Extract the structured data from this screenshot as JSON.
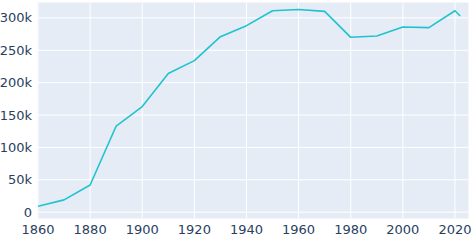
{
  "chart_data": {
    "type": "line",
    "x": [
      1860,
      1870,
      1880,
      1890,
      1900,
      1910,
      1920,
      1930,
      1940,
      1950,
      1960,
      1970,
      1980,
      1990,
      2000,
      2010,
      2020,
      2022
    ],
    "values": [
      9000,
      19000,
      42000,
      133000,
      163000,
      214000,
      234000,
      271000,
      288000,
      311000,
      313000,
      310000,
      270000,
      272000,
      286000,
      285000,
      311000,
      303000
    ],
    "color": "#1fc3cf",
    "xlim": [
      1860,
      2025
    ],
    "xticks": [
      1860,
      1880,
      1900,
      1920,
      1940,
      1960,
      1980,
      2000,
      2020
    ],
    "ylim": [
      -9000,
      323000
    ],
    "yticks": [
      0,
      {
        "value": 50000,
        "label": "50k"
      },
      {
        "value": 100000,
        "label": "100k"
      },
      {
        "value": 150000,
        "label": "150k"
      },
      {
        "value": 200000,
        "label": "200k"
      },
      {
        "value": 250000,
        "label": "250k"
      },
      {
        "value": 300000,
        "label": "300k"
      }
    ],
    "grid": true
  }
}
